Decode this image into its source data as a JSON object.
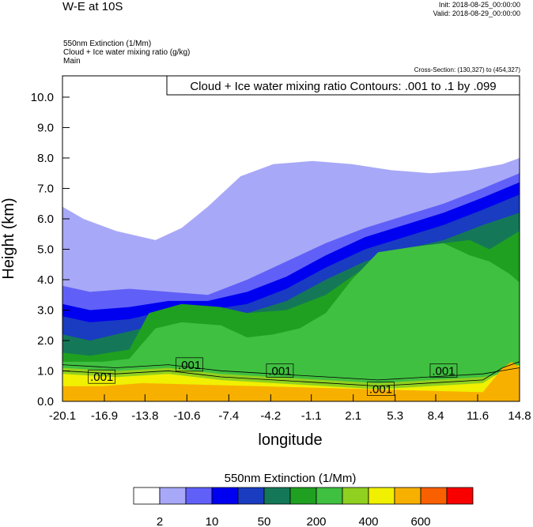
{
  "header": {
    "title": "W-E at 10S",
    "init": "Init: 2018-08-25_00:00:00",
    "valid": "Valid: 2018-08-29_00:00:00",
    "subtitle_lines": [
      "550nm Extinction   (1/Mm)",
      "Cloud + Ice water mixing ratio   (g/kg)",
      "Main"
    ],
    "cross_section": "Cross-Section: (130,327) to (454,327)"
  },
  "chart_data": {
    "type": "heatmap",
    "title": "W-E at 10S",
    "xlabel": "longitude",
    "ylabel": "Height (km)",
    "x_ticks": [
      "-20.1",
      "-16.9",
      "-13.8",
      "-10.6",
      "-7.4",
      "-4.2",
      "-1.1",
      "2.1",
      "5.3",
      "8.4",
      "11.6",
      "14.8"
    ],
    "y_ticks": [
      "0.0",
      "1.0",
      "2.0",
      "3.0",
      "4.0",
      "5.0",
      "6.0",
      "7.0",
      "8.0",
      "9.0",
      "10.0"
    ],
    "xlim": [
      -20.1,
      14.8
    ],
    "ylim": [
      0,
      10.7
    ],
    "contour_label": "Cloud + Ice water mixing ratio Contours: .001 to .1 by .099",
    "contour_annotations": [
      {
        "text": ".001",
        "x": -17.1,
        "y": 0.8
      },
      {
        "text": ".001",
        "x": -10.4,
        "y": 1.2
      },
      {
        "text": ".001",
        "x": -3.5,
        "y": 1.0
      },
      {
        "text": ".001",
        "x": 4.2,
        "y": 0.4
      },
      {
        "text": ".001",
        "x": 9.0,
        "y": 1.0
      }
    ],
    "layers": [
      {
        "level": 1,
        "boundary": [
          [
            -20.1,
            6.4
          ],
          [
            -18.5,
            6.0
          ],
          [
            -16,
            5.6
          ],
          [
            -13,
            5.3
          ],
          [
            -11,
            5.7
          ],
          [
            -9,
            6.4
          ],
          [
            -6.5,
            7.4
          ],
          [
            -4,
            7.8
          ],
          [
            -1,
            7.9
          ],
          [
            2,
            7.8
          ],
          [
            5,
            7.6
          ],
          [
            8,
            7.5
          ],
          [
            11,
            7.6
          ],
          [
            13.5,
            7.8
          ],
          [
            14.8,
            8.0
          ]
        ]
      },
      {
        "level": 2,
        "boundary": [
          [
            -20.1,
            3.8
          ],
          [
            -18,
            3.6
          ],
          [
            -15,
            3.7
          ],
          [
            -12,
            3.6
          ],
          [
            -9,
            3.5
          ],
          [
            -6,
            4.0
          ],
          [
            -3,
            4.6
          ],
          [
            0,
            5.2
          ],
          [
            3,
            5.7
          ],
          [
            6,
            6.1
          ],
          [
            9,
            6.5
          ],
          [
            12,
            7.0
          ],
          [
            14.8,
            7.5
          ]
        ]
      },
      {
        "level": 3,
        "boundary": [
          [
            -20.1,
            3.2
          ],
          [
            -18,
            3.0
          ],
          [
            -15,
            3.1
          ],
          [
            -12,
            3.3
          ],
          [
            -9,
            3.3
          ],
          [
            -6,
            3.6
          ],
          [
            -3,
            4.1
          ],
          [
            0,
            4.8
          ],
          [
            3,
            5.4
          ],
          [
            6,
            5.8
          ],
          [
            9,
            6.2
          ],
          [
            12,
            6.7
          ],
          [
            14.8,
            7.2
          ]
        ]
      },
      {
        "level": 4,
        "boundary": [
          [
            -20.1,
            2.8
          ],
          [
            -18,
            2.6
          ],
          [
            -15,
            2.7
          ],
          [
            -12,
            3.0
          ],
          [
            -9,
            3.0
          ],
          [
            -6,
            3.2
          ],
          [
            -3,
            3.7
          ],
          [
            0,
            4.4
          ],
          [
            3,
            5.0
          ],
          [
            6,
            5.4
          ],
          [
            9,
            5.8
          ],
          [
            12,
            6.3
          ],
          [
            14.8,
            6.8
          ]
        ]
      },
      {
        "level": 5,
        "boundary": [
          [
            -20.1,
            2.2
          ],
          [
            -18,
            2.0
          ],
          [
            -15,
            2.3
          ],
          [
            -12,
            2.6
          ],
          [
            -9,
            2.7
          ],
          [
            -6,
            2.9
          ],
          [
            -3,
            3.3
          ],
          [
            0,
            4.0
          ],
          [
            3,
            4.6
          ],
          [
            6,
            5.0
          ],
          [
            9,
            5.3
          ],
          [
            12,
            5.8
          ],
          [
            14.8,
            6.2
          ]
        ]
      },
      {
        "level": 6,
        "boundary": [
          [
            -20.1,
            1.6
          ],
          [
            -18,
            1.5
          ],
          [
            -15,
            1.7
          ],
          [
            -13.5,
            2.9
          ],
          [
            -11,
            3.2
          ],
          [
            -8,
            3.1
          ],
          [
            -6,
            2.9
          ],
          [
            -3,
            3.0
          ],
          [
            0,
            3.5
          ],
          [
            3,
            4.4
          ],
          [
            6,
            4.9
          ],
          [
            9,
            5.2
          ],
          [
            11,
            5.3
          ],
          [
            12.5,
            5.0
          ],
          [
            14.8,
            5.6
          ]
        ]
      },
      {
        "level": 7,
        "boundary": [
          [
            -20.1,
            1.3
          ],
          [
            -17,
            1.3
          ],
          [
            -15,
            1.4
          ],
          [
            -13,
            2.4
          ],
          [
            -11,
            2.6
          ],
          [
            -8,
            2.5
          ],
          [
            -6,
            2.1
          ],
          [
            -4,
            2.2
          ],
          [
            -2,
            2.4
          ],
          [
            0,
            2.9
          ],
          [
            2,
            4.0
          ],
          [
            4,
            4.9
          ],
          [
            7,
            5.1
          ],
          [
            9,
            5.2
          ],
          [
            11,
            4.8
          ],
          [
            12.5,
            4.6
          ],
          [
            14,
            4.2
          ],
          [
            14.8,
            3.9
          ]
        ]
      },
      {
        "level": 8,
        "boundary": [
          [
            -20.1,
            1.1
          ],
          [
            -16,
            1.0
          ],
          [
            -12,
            1.1
          ],
          [
            -8,
            0.9
          ],
          [
            -4,
            0.8
          ],
          [
            0,
            0.7
          ],
          [
            4,
            0.6
          ],
          [
            8,
            0.7
          ],
          [
            12,
            0.8
          ],
          [
            14.8,
            1.0
          ]
        ]
      },
      {
        "level": 9,
        "boundary": [
          [
            -20.1,
            0.9
          ],
          [
            -16,
            0.8
          ],
          [
            -12,
            0.9
          ],
          [
            -8,
            0.7
          ],
          [
            -4,
            0.6
          ],
          [
            0,
            0.5
          ],
          [
            4,
            0.4
          ],
          [
            8,
            0.5
          ],
          [
            12,
            0.6
          ],
          [
            13.5,
            1.0
          ],
          [
            14.8,
            1.2
          ]
        ]
      },
      {
        "level": 10,
        "boundary": [
          [
            -20.1,
            0.5
          ],
          [
            -17,
            0.5
          ],
          [
            -14,
            0.6
          ],
          [
            12,
            0.3
          ],
          [
            13.5,
            1.1
          ],
          [
            14.2,
            1.3
          ],
          [
            14.8,
            1.1
          ]
        ]
      }
    ],
    "colorbar": {
      "title": "550nm Extinction  (1/Mm)",
      "colors": [
        "#ffffff",
        "#a8a8f8",
        "#6060f8",
        "#0000f0",
        "#1a3cc0",
        "#147858",
        "#20a020",
        "#40c040",
        "#90d020",
        "#f0f000",
        "#f8b000",
        "#f86000",
        "#f80000"
      ],
      "labels": [
        {
          "text": "2",
          "after_box": 1
        },
        {
          "text": "10",
          "after_box": 3
        },
        {
          "text": "50",
          "after_box": 5
        },
        {
          "text": "200",
          "after_box": 7
        },
        {
          "text": "400",
          "after_box": 9
        },
        {
          "text": "600",
          "after_box": 11
        }
      ]
    }
  }
}
